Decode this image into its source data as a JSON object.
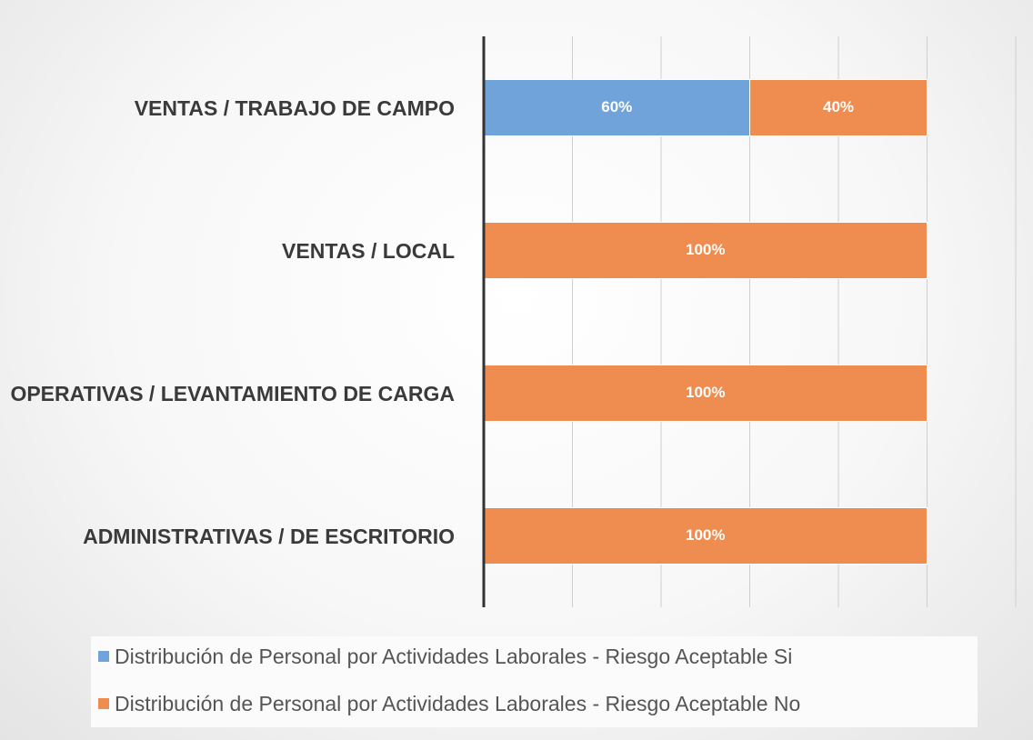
{
  "chart_data": {
    "type": "stacked_barh",
    "categories": [
      "VENTAS / TRABAJO DE CAMPO",
      "VENTAS / LOCAL",
      "OPERATIVAS / LEVANTAMIENTO DE CARGA",
      "ADMINISTRATIVAS / DE ESCRITORIO"
    ],
    "series": [
      {
        "name": "Distribución de Personal por Actividades Laborales - Riesgo Aceptable Si",
        "color": "#6fa3d9",
        "values": [
          60,
          0,
          0,
          0
        ],
        "value_labels": [
          "60%",
          "%",
          "%",
          "%"
        ]
      },
      {
        "name": "Distribución de Personal por Actividades Laborales - Riesgo Aceptable No",
        "color": "#ef8c4f",
        "values": [
          40,
          100,
          100,
          100
        ],
        "value_labels": [
          "40%",
          "100%",
          "100%",
          "100%"
        ]
      }
    ],
    "xlim": [
      0,
      120
    ],
    "xticks": [
      0,
      20,
      40,
      60,
      80,
      100,
      120
    ],
    "grid": true,
    "legend": "bottom"
  }
}
